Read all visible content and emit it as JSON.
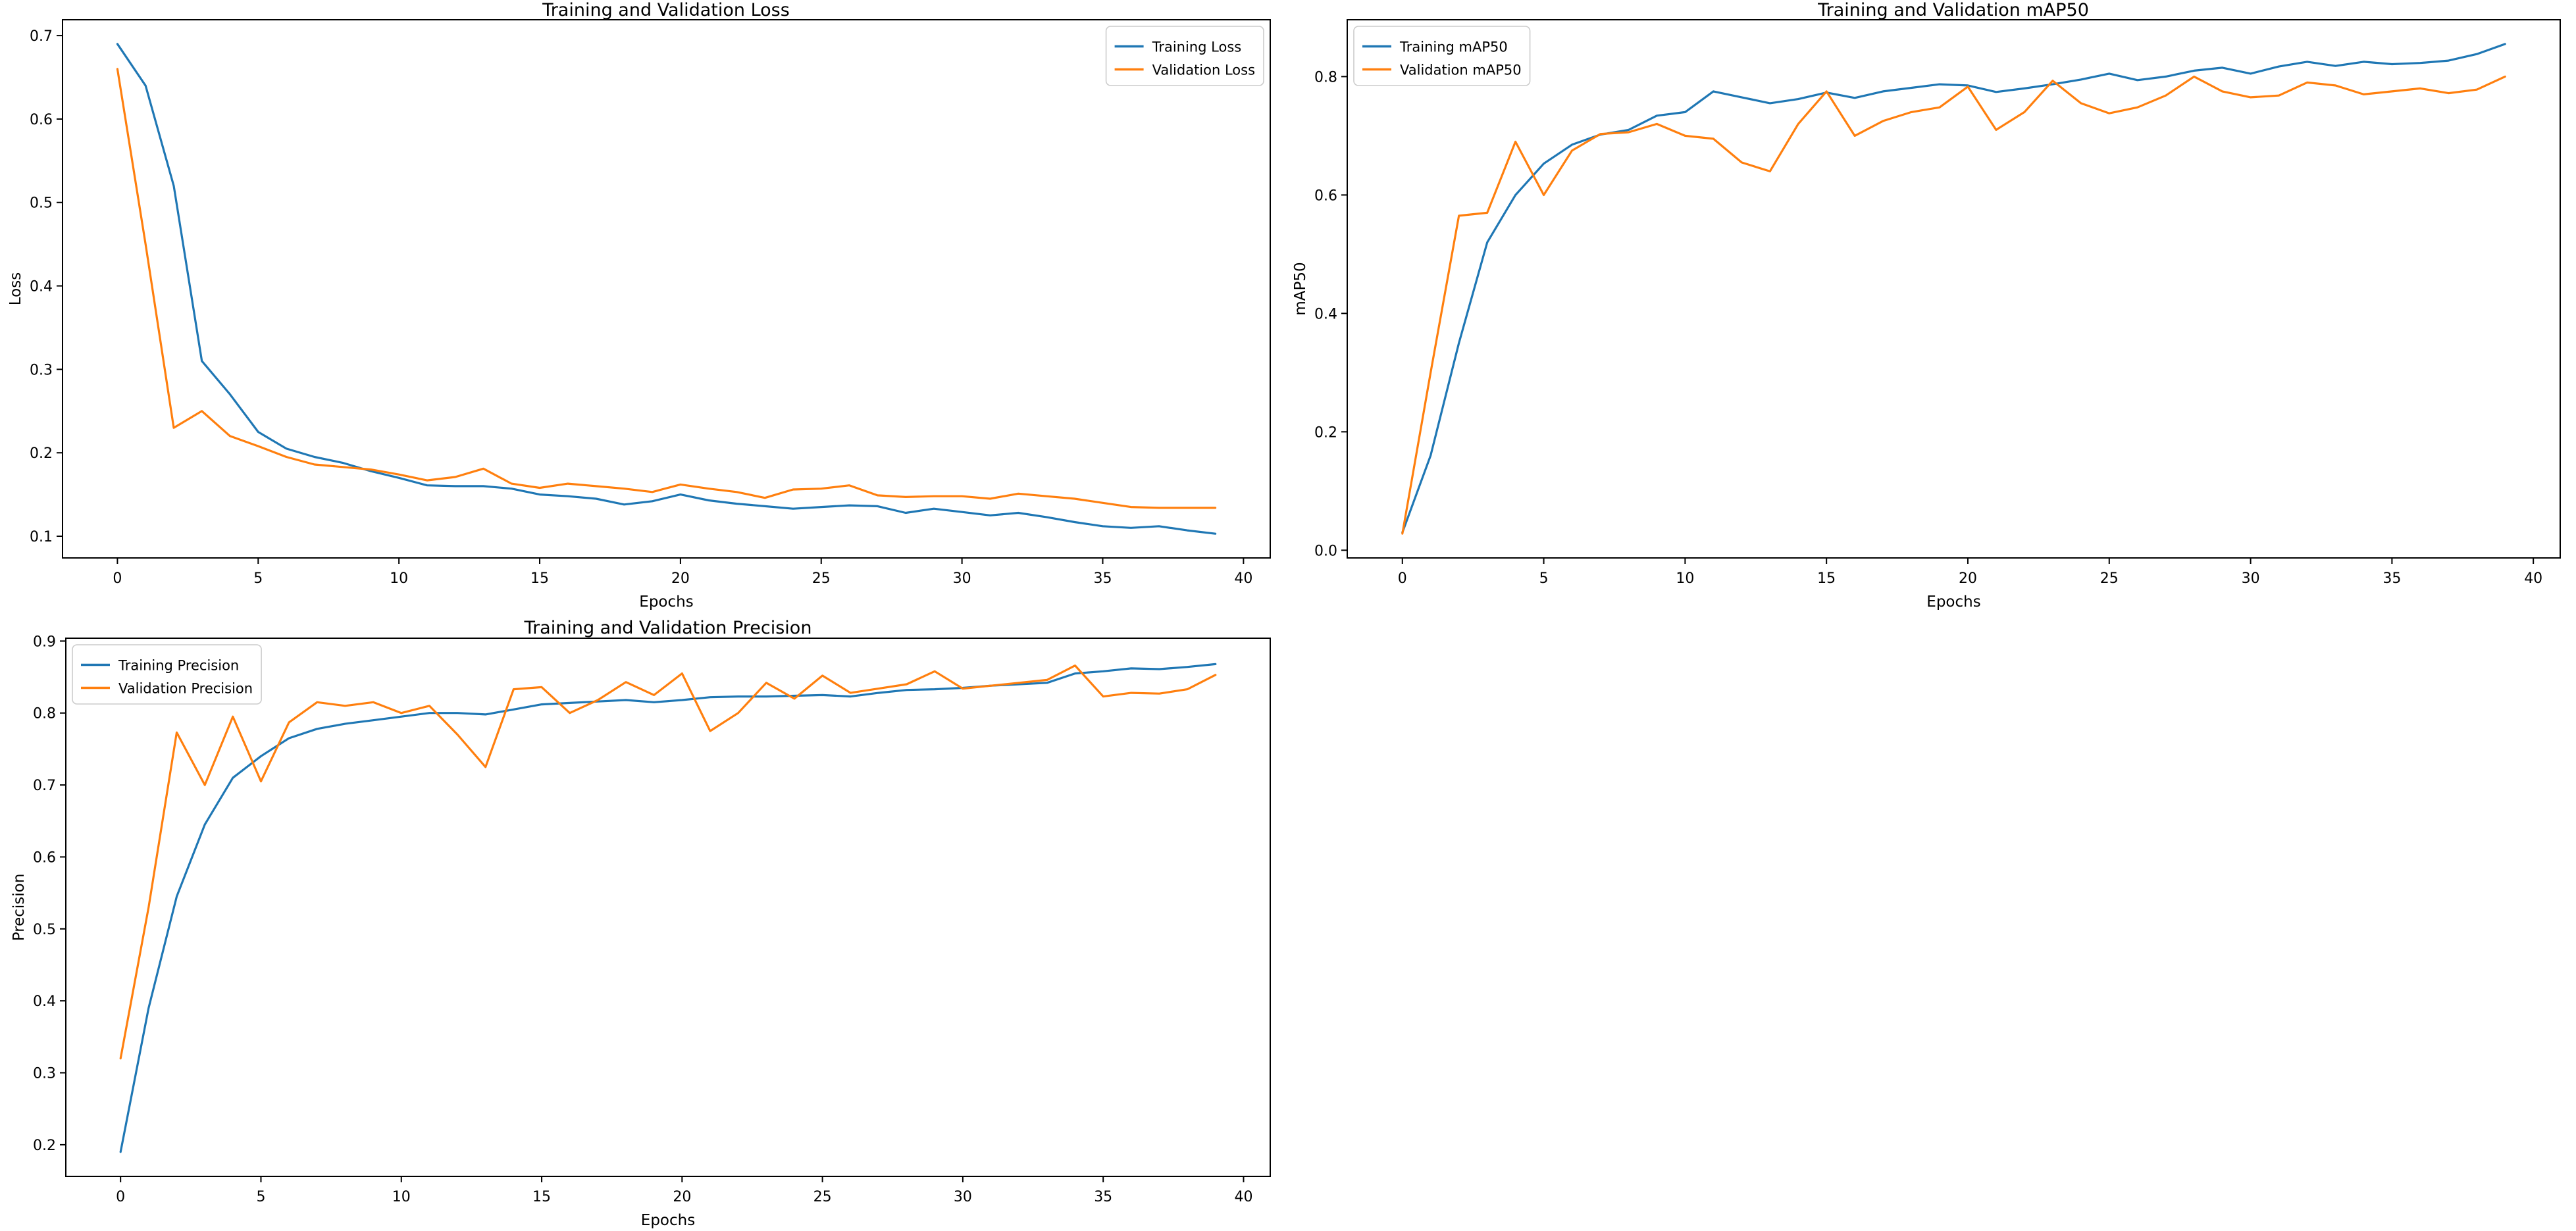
{
  "figure": {
    "background": "#ffffff"
  },
  "colors": {
    "training_line": "#1f77b4",
    "validation_line": "#ff7f0e",
    "axis": "#000000",
    "text": "#000000",
    "legend_border": "#cccccc",
    "legend_background": "#ffffff"
  },
  "chart_data": [
    {
      "id": "loss",
      "type": "line",
      "title": "Training and Validation Loss",
      "xlabel": "Epochs",
      "ylabel": "Loss",
      "legend_loc": "upper right",
      "grid": false,
      "xlim": [
        -1.95,
        40.95
      ],
      "ylim": [
        0.074,
        0.719
      ],
      "xticks": [
        0,
        5,
        10,
        15,
        20,
        25,
        30,
        35,
        40
      ],
      "xtick_labels": [
        "0",
        "5",
        "10",
        "15",
        "20",
        "25",
        "30",
        "35",
        "40"
      ],
      "yticks": [
        0.1,
        0.2,
        0.3,
        0.4,
        0.5,
        0.6,
        0.7
      ],
      "ytick_labels": [
        "0.1",
        "0.2",
        "0.3",
        "0.4",
        "0.5",
        "0.6",
        "0.7"
      ],
      "x": [
        0,
        1,
        2,
        3,
        4,
        5,
        6,
        7,
        8,
        9,
        10,
        11,
        12,
        13,
        14,
        15,
        16,
        17,
        18,
        19,
        20,
        21,
        22,
        23,
        24,
        25,
        26,
        27,
        28,
        29,
        30,
        31,
        32,
        33,
        34,
        35,
        36,
        37,
        38,
        39
      ],
      "series": [
        {
          "name": "Training Loss",
          "color": "#1f77b4",
          "values": [
            0.69,
            0.64,
            0.52,
            0.31,
            0.27,
            0.225,
            0.205,
            0.195,
            0.188,
            0.178,
            0.17,
            0.161,
            0.16,
            0.16,
            0.157,
            0.15,
            0.148,
            0.145,
            0.138,
            0.142,
            0.15,
            0.143,
            0.139,
            0.136,
            0.133,
            0.135,
            0.137,
            0.136,
            0.128,
            0.133,
            0.129,
            0.125,
            0.128,
            0.123,
            0.117,
            0.112,
            0.11,
            0.112,
            0.107,
            0.103
          ]
        },
        {
          "name": "Validation Loss",
          "color": "#ff7f0e",
          "values": [
            0.66,
            0.45,
            0.23,
            0.25,
            0.22,
            0.208,
            0.195,
            0.186,
            0.183,
            0.18,
            0.174,
            0.167,
            0.171,
            0.181,
            0.163,
            0.158,
            0.163,
            0.16,
            0.157,
            0.153,
            0.162,
            0.157,
            0.153,
            0.146,
            0.156,
            0.157,
            0.161,
            0.149,
            0.147,
            0.148,
            0.148,
            0.145,
            0.151,
            0.148,
            0.145,
            0.14,
            0.135,
            0.134,
            0.134,
            0.134
          ]
        }
      ]
    },
    {
      "id": "map50",
      "type": "line",
      "title": "Training and Validation mAP50",
      "xlabel": "Epochs",
      "ylabel": "mAP50",
      "legend_loc": "upper left",
      "grid": false,
      "xlim": [
        -1.95,
        40.95
      ],
      "ylim": [
        -0.013,
        0.896
      ],
      "xticks": [
        0,
        5,
        10,
        15,
        20,
        25,
        30,
        35,
        40
      ],
      "xtick_labels": [
        "0",
        "5",
        "10",
        "15",
        "20",
        "25",
        "30",
        "35",
        "40"
      ],
      "yticks": [
        0.0,
        0.2,
        0.4,
        0.6,
        0.8
      ],
      "ytick_labels": [
        "0.0",
        "0.2",
        "0.4",
        "0.6",
        "0.8"
      ],
      "x": [
        0,
        1,
        2,
        3,
        4,
        5,
        6,
        7,
        8,
        9,
        10,
        11,
        12,
        13,
        14,
        15,
        16,
        17,
        18,
        19,
        20,
        21,
        22,
        23,
        24,
        25,
        26,
        27,
        28,
        29,
        30,
        31,
        32,
        33,
        34,
        35,
        36,
        37,
        38,
        39
      ],
      "series": [
        {
          "name": "Training mAP50",
          "color": "#1f77b4",
          "values": [
            0.03,
            0.16,
            0.35,
            0.52,
            0.6,
            0.653,
            0.685,
            0.702,
            0.71,
            0.734,
            0.74,
            0.775,
            0.765,
            0.755,
            0.762,
            0.773,
            0.764,
            0.775,
            0.781,
            0.787,
            0.785,
            0.774,
            0.78,
            0.787,
            0.795,
            0.805,
            0.794,
            0.8,
            0.81,
            0.815,
            0.805,
            0.817,
            0.825,
            0.818,
            0.825,
            0.821,
            0.823,
            0.827,
            0.838,
            0.855
          ]
        },
        {
          "name": "Validation mAP50",
          "color": "#ff7f0e",
          "values": [
            0.028,
            0.3,
            0.565,
            0.57,
            0.69,
            0.6,
            0.675,
            0.703,
            0.706,
            0.72,
            0.7,
            0.695,
            0.655,
            0.64,
            0.72,
            0.775,
            0.7,
            0.725,
            0.74,
            0.748,
            0.783,
            0.71,
            0.74,
            0.793,
            0.755,
            0.738,
            0.748,
            0.768,
            0.8,
            0.775,
            0.765,
            0.768,
            0.79,
            0.785,
            0.77,
            0.775,
            0.78,
            0.772,
            0.778,
            0.8
          ]
        }
      ]
    },
    {
      "id": "precision",
      "type": "line",
      "title": "Training and Validation Precision",
      "xlabel": "Epochs",
      "ylabel": "Precision",
      "legend_loc": "upper left",
      "grid": false,
      "xlim": [
        -1.95,
        40.95
      ],
      "ylim": [
        0.156,
        0.904
      ],
      "xticks": [
        0,
        5,
        10,
        15,
        20,
        25,
        30,
        35,
        40
      ],
      "xtick_labels": [
        "0",
        "5",
        "10",
        "15",
        "20",
        "25",
        "30",
        "35",
        "40"
      ],
      "yticks": [
        0.2,
        0.3,
        0.4,
        0.5,
        0.6,
        0.7,
        0.8,
        0.9
      ],
      "ytick_labels": [
        "0.2",
        "0.3",
        "0.4",
        "0.5",
        "0.6",
        "0.7",
        "0.8",
        "0.9"
      ],
      "x": [
        0,
        1,
        2,
        3,
        4,
        5,
        6,
        7,
        8,
        9,
        10,
        11,
        12,
        13,
        14,
        15,
        16,
        17,
        18,
        19,
        20,
        21,
        22,
        23,
        24,
        25,
        26,
        27,
        28,
        29,
        30,
        31,
        32,
        33,
        34,
        35,
        36,
        37,
        38,
        39
      ],
      "series": [
        {
          "name": "Training Precision",
          "color": "#1f77b4",
          "values": [
            0.19,
            0.39,
            0.545,
            0.645,
            0.71,
            0.74,
            0.765,
            0.778,
            0.785,
            0.79,
            0.795,
            0.8,
            0.8,
            0.798,
            0.805,
            0.812,
            0.814,
            0.816,
            0.818,
            0.815,
            0.818,
            0.822,
            0.823,
            0.823,
            0.824,
            0.825,
            0.823,
            0.828,
            0.832,
            0.833,
            0.835,
            0.838,
            0.84,
            0.842,
            0.855,
            0.858,
            0.862,
            0.861,
            0.864,
            0.868
          ]
        },
        {
          "name": "Validation Precision",
          "color": "#ff7f0e",
          "values": [
            0.32,
            0.53,
            0.773,
            0.7,
            0.795,
            0.705,
            0.787,
            0.815,
            0.81,
            0.815,
            0.8,
            0.81,
            0.77,
            0.725,
            0.833,
            0.836,
            0.8,
            0.818,
            0.843,
            0.825,
            0.855,
            0.775,
            0.8,
            0.842,
            0.82,
            0.852,
            0.828,
            0.834,
            0.84,
            0.858,
            0.834,
            0.838,
            0.842,
            0.846,
            0.866,
            0.823,
            0.828,
            0.827,
            0.833,
            0.853
          ]
        }
      ]
    }
  ]
}
